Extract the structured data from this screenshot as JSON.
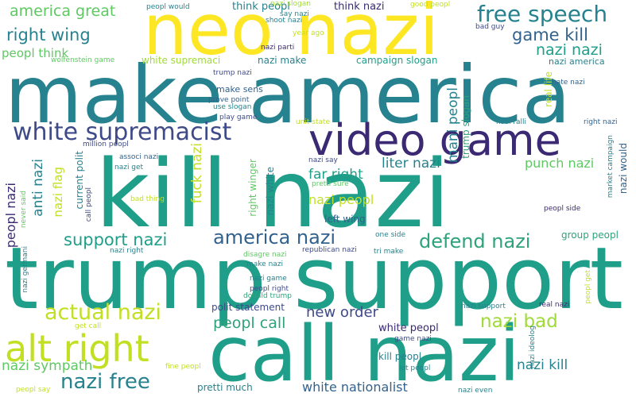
{
  "colors": {
    "deep_purple": "#3b2a73",
    "indigo": "#3e4a89",
    "slate_blue": "#32628d",
    "teal_blue": "#26828e",
    "teal": "#1f9e89",
    "sea_green": "#2ea37a",
    "green": "#5ec962",
    "yellow_green": "#a0da39",
    "chartreuse": "#c2df23",
    "yellow": "#fde725"
  },
  "words": [
    {
      "text": "trump support"
    },
    {
      "text": "make america"
    },
    {
      "text": "kill nazi"
    },
    {
      "text": "call nazi"
    },
    {
      "text": "neo nazi"
    },
    {
      "text": "video game"
    },
    {
      "text": "alt right"
    },
    {
      "text": "white supremacist"
    },
    {
      "text": "free speech"
    },
    {
      "text": "actual nazi"
    },
    {
      "text": "america nazi"
    },
    {
      "text": "defend nazi"
    },
    {
      "text": "support nazi"
    },
    {
      "text": "nazi free"
    },
    {
      "text": "right wing"
    },
    {
      "text": "game kill"
    },
    {
      "text": "america great"
    },
    {
      "text": "nazi nazi"
    },
    {
      "text": "nazi bad"
    },
    {
      "text": "peopl call"
    },
    {
      "text": "nazi sympath"
    },
    {
      "text": "new order"
    },
    {
      "text": "white nationalist"
    },
    {
      "text": "nazi kill"
    },
    {
      "text": "far right"
    },
    {
      "text": "liter nazi"
    },
    {
      "text": "punch nazi"
    },
    {
      "text": "nazi peopl"
    },
    {
      "text": "peopl think"
    },
    {
      "text": "think peopl"
    },
    {
      "text": "think nazi"
    },
    {
      "text": "white supremaci"
    },
    {
      "text": "nazi make"
    },
    {
      "text": "campaign slogan"
    },
    {
      "text": "nazi america"
    },
    {
      "text": "make sens"
    },
    {
      "text": "left wing"
    },
    {
      "text": "white peopl"
    },
    {
      "text": "kill peopl"
    },
    {
      "text": "pretti much"
    },
    {
      "text": "polit statement"
    },
    {
      "text": "group peopl"
    },
    {
      "text": "prove point"
    },
    {
      "text": "use slogan"
    },
    {
      "text": "play game"
    },
    {
      "text": "trump nazi"
    },
    {
      "text": "nazi parti"
    },
    {
      "text": "shoot nazi"
    },
    {
      "text": "say nazi"
    },
    {
      "text": "nazi slogan"
    },
    {
      "text": "year ago"
    },
    {
      "text": "peopl would"
    },
    {
      "text": "good peopl"
    },
    {
      "text": "bad guy"
    },
    {
      "text": "wolfenstein game"
    },
    {
      "text": "hate nazi"
    },
    {
      "text": "unit state"
    },
    {
      "text": "nazi ralli"
    },
    {
      "text": "right nazi"
    },
    {
      "text": "million peopl"
    },
    {
      "text": "associ nazi"
    },
    {
      "text": "nazi get"
    },
    {
      "text": "nazi say"
    },
    {
      "text": "pretti sure"
    },
    {
      "text": "bad thing"
    },
    {
      "text": "peopl side"
    },
    {
      "text": "one side"
    },
    {
      "text": "nazi right"
    },
    {
      "text": "disagre nazi"
    },
    {
      "text": "make nazi"
    },
    {
      "text": "republican nazi"
    },
    {
      "text": "tri make"
    },
    {
      "text": "nazi game"
    },
    {
      "text": "peopl right"
    },
    {
      "text": "donald trump"
    },
    {
      "text": "nazi support"
    },
    {
      "text": "real nazi"
    },
    {
      "text": "get call"
    },
    {
      "text": "game nazi"
    },
    {
      "text": "fine peopl"
    },
    {
      "text": "lot peopl"
    },
    {
      "text": "peopl say"
    },
    {
      "text": "nazi even"
    },
    {
      "text": "peopl nazi"
    },
    {
      "text": "anti nazi"
    },
    {
      "text": "nazi flag"
    },
    {
      "text": "current polit"
    },
    {
      "text": "call peopl"
    },
    {
      "text": "never said"
    },
    {
      "text": "nazi germani"
    },
    {
      "text": "fuck nazi"
    },
    {
      "text": "right winger"
    },
    {
      "text": "nazi white"
    },
    {
      "text": "mani peopl"
    },
    {
      "text": "trump slogan"
    },
    {
      "text": "real life"
    },
    {
      "text": "market campaign"
    },
    {
      "text": "nazi would"
    },
    {
      "text": "peopl get"
    },
    {
      "text": "nazi ideolog"
    }
  ]
}
